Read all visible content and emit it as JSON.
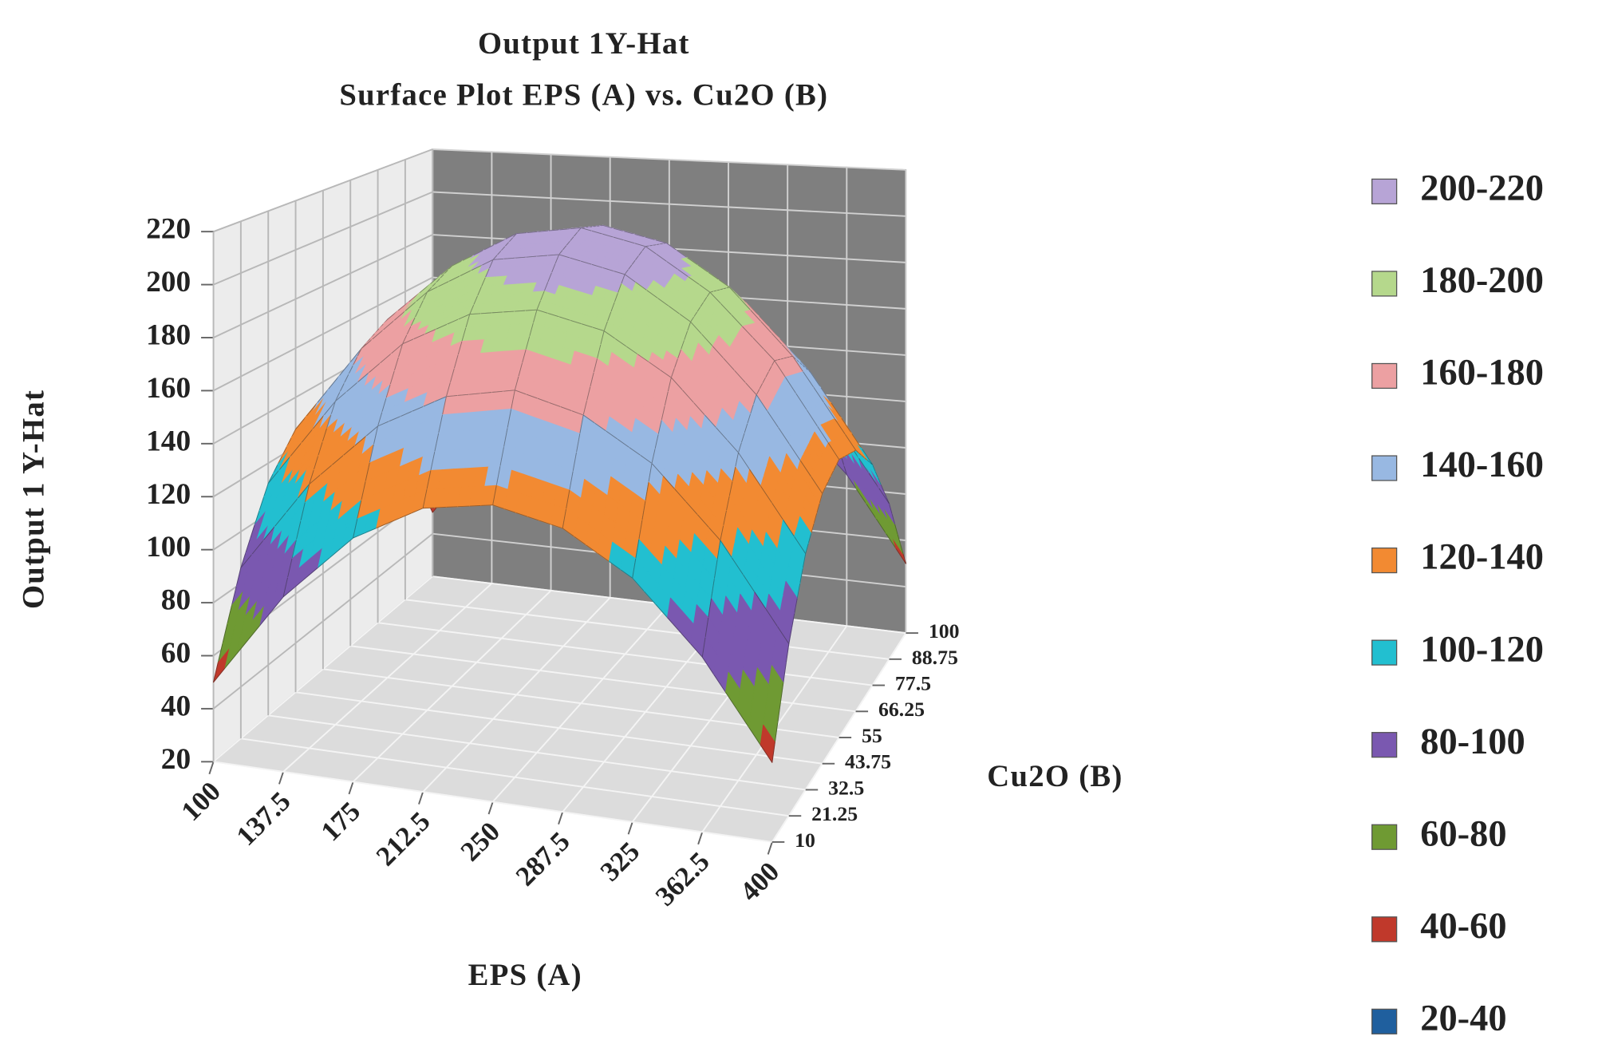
{
  "chart_data": {
    "type": "surface",
    "title": "Output 1Y-Hat",
    "subtitle": "Surface Plot EPS (A) vs. Cu2O (B)",
    "x_label": "EPS (A)",
    "y_label": "Cu2O (B)",
    "z_label": "Output 1 Y-Hat",
    "x": [
      100,
      137.5,
      175,
      212.5,
      250,
      287.5,
      325,
      362.5,
      400
    ],
    "y": [
      10,
      21.25,
      32.5,
      43.75,
      55,
      66.25,
      77.5,
      88.75,
      100
    ],
    "z": [
      [
        50,
        86,
        112,
        127,
        132,
        127,
        112,
        86,
        50
      ],
      [
        86,
        122,
        148,
        163,
        169,
        163,
        148,
        122,
        86
      ],
      [
        112,
        148,
        174,
        189,
        194,
        189,
        174,
        148,
        112
      ],
      [
        127,
        163,
        189,
        205,
        210,
        205,
        189,
        163,
        127
      ],
      [
        132,
        169,
        194,
        210,
        215,
        210,
        194,
        169,
        132
      ],
      [
        127,
        163,
        189,
        205,
        210,
        205,
        189,
        163,
        127
      ],
      [
        112,
        148,
        174,
        189,
        194,
        189,
        174,
        148,
        112
      ],
      [
        86,
        122,
        148,
        163,
        169,
        163,
        148,
        122,
        86
      ],
      [
        50,
        86,
        112,
        127,
        132,
        127,
        112,
        86,
        50
      ]
    ],
    "xlim": [
      100,
      400
    ],
    "ylim": [
      10,
      100
    ],
    "zlim": [
      20,
      220
    ],
    "xticks": [
      100,
      137.5,
      175,
      212.5,
      250,
      287.5,
      325,
      362.5,
      400
    ],
    "yticks": [
      10,
      21.25,
      32.5,
      43.75,
      55,
      66.25,
      77.5,
      88.75,
      100
    ],
    "zticks": [
      20,
      40,
      60,
      80,
      100,
      120,
      140,
      160,
      180,
      200,
      220
    ],
    "grid": true,
    "bands": [
      {
        "label": "200-220",
        "range": [
          200,
          220
        ],
        "color": "#b7a4d6"
      },
      {
        "label": "180-200",
        "range": [
          180,
          200
        ],
        "color": "#b5d88c"
      },
      {
        "label": "160-180",
        "range": [
          160,
          180
        ],
        "color": "#eca0a2"
      },
      {
        "label": "140-160",
        "range": [
          140,
          160
        ],
        "color": "#98b8e2"
      },
      {
        "label": "120-140",
        "range": [
          120,
          140
        ],
        "color": "#f28a32"
      },
      {
        "label": "100-120",
        "range": [
          100,
          120
        ],
        "color": "#22bfd0"
      },
      {
        "label": "80-100",
        "range": [
          80,
          100
        ],
        "color": "#7a58b0"
      },
      {
        "label": "60-80",
        "range": [
          60,
          80
        ],
        "color": "#6f9a33"
      },
      {
        "label": "40-60",
        "range": [
          40,
          60
        ],
        "color": "#c0392b"
      },
      {
        "label": "20-40",
        "range": [
          20,
          40
        ],
        "color": "#1f5f9e"
      }
    ]
  }
}
